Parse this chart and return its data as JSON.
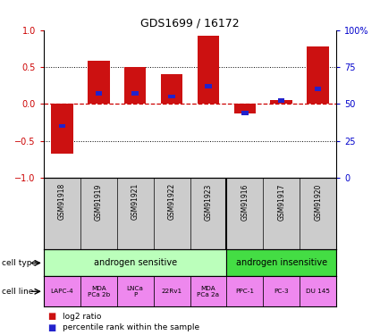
{
  "title": "GDS1699 / 16172",
  "samples": [
    "GSM91918",
    "GSM91919",
    "GSM91921",
    "GSM91922",
    "GSM91923",
    "GSM91916",
    "GSM91917",
    "GSM91920"
  ],
  "log2_ratio": [
    -0.67,
    0.585,
    0.5,
    0.4,
    0.93,
    -0.13,
    0.05,
    0.78
  ],
  "percentile_rank": [
    35,
    57,
    57,
    55,
    62,
    44,
    52,
    60
  ],
  "ylim": [
    -1,
    1
  ],
  "y_ticks_left": [
    -1,
    -0.5,
    0,
    0.5,
    1
  ],
  "dotted_lines": [
    -0.5,
    0.5
  ],
  "zero_line_y": 0,
  "cell_type_groups": [
    {
      "label": "androgen sensitive",
      "start": 0,
      "end": 5,
      "color": "#bbffbb"
    },
    {
      "label": "androgen insensitive",
      "start": 5,
      "end": 8,
      "color": "#44dd44"
    }
  ],
  "cell_line_groups": [
    {
      "label": "LAPC-4",
      "start": 0,
      "end": 1
    },
    {
      "label": "MDA\nPCa 2b",
      "start": 1,
      "end": 2
    },
    {
      "label": "LNCa\nP",
      "start": 2,
      "end": 3
    },
    {
      "label": "22Rv1",
      "start": 3,
      "end": 4
    },
    {
      "label": "MDA\nPCa 2a",
      "start": 4,
      "end": 5
    },
    {
      "label": "PPC-1",
      "start": 5,
      "end": 6
    },
    {
      "label": "PC-3",
      "start": 6,
      "end": 7
    },
    {
      "label": "DU 145",
      "start": 7,
      "end": 8
    }
  ],
  "cell_line_color": "#ee88ee",
  "gsm_bg_color": "#cccccc",
  "bar_color": "#cc1111",
  "percentile_color": "#2222cc",
  "zero_line_color": "#cc0000",
  "label_color_left": "#cc0000",
  "label_color_right": "#0000cc",
  "legend_items": [
    {
      "label": "log2 ratio",
      "color": "#cc1111"
    },
    {
      "label": "percentile rank within the sample",
      "color": "#2222cc"
    }
  ]
}
